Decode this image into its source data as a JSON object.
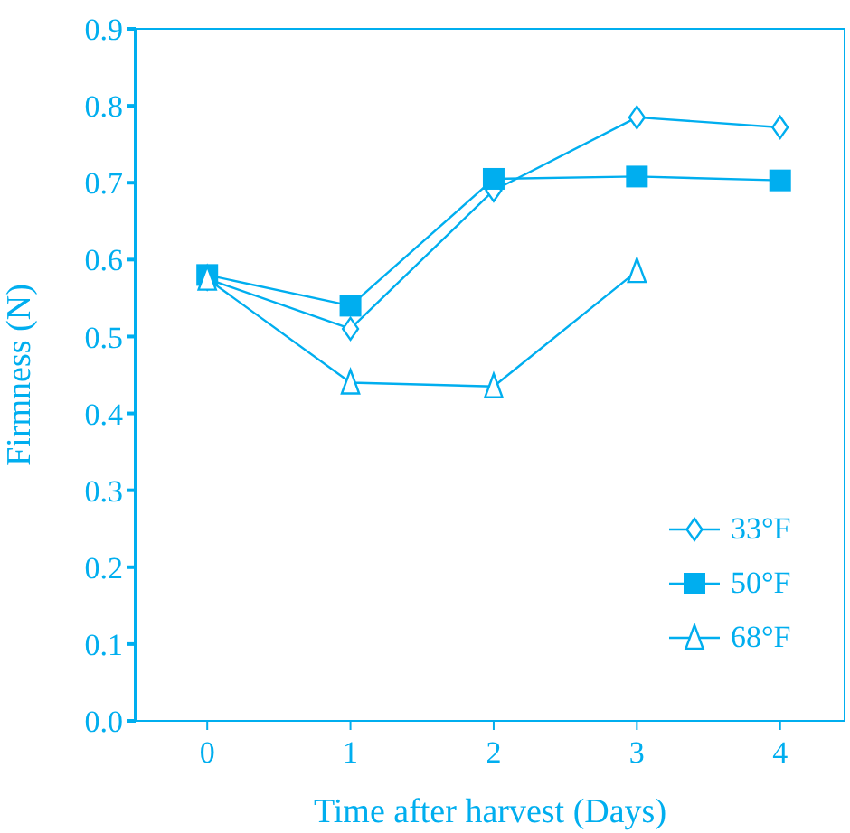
{
  "chart_data": {
    "type": "line",
    "xlabel": "Time after harvest (Days)",
    "ylabel": "Firmness (N)",
    "x": [
      0,
      1,
      2,
      3,
      4
    ],
    "series": [
      {
        "name": "33°F",
        "color": "#00aeef",
        "marker": "diamond",
        "values": [
          0.575,
          0.51,
          0.69,
          0.785,
          0.772
        ]
      },
      {
        "name": "50°F",
        "color": "#00aeef",
        "marker": "square",
        "values": [
          0.58,
          0.54,
          0.705,
          0.708,
          0.703
        ]
      },
      {
        "name": "68°F",
        "color": "#00aeef",
        "marker": "triangle",
        "values": [
          0.575,
          0.44,
          0.435,
          0.585,
          null
        ]
      }
    ],
    "xlim": [
      -0.5,
      4.45
    ],
    "xticks": [
      0,
      1,
      2,
      3,
      4
    ],
    "ylim": [
      0,
      0.9
    ],
    "yticks": [
      {
        "value": 0,
        "label": "0.0"
      },
      0.1,
      0.2,
      0.3,
      0.4,
      0.5,
      0.6,
      0.7,
      0.8,
      0.9
    ],
    "legend": "bottom right",
    "line_style": "solid"
  }
}
